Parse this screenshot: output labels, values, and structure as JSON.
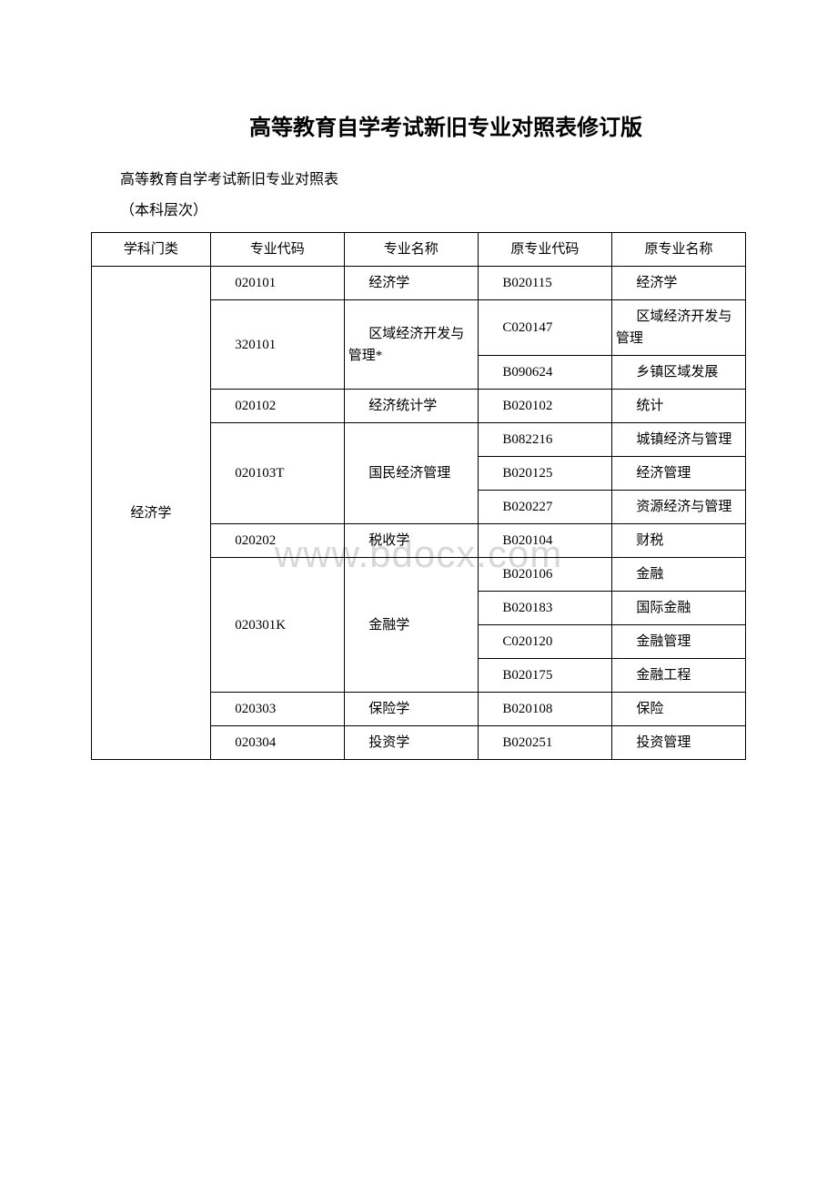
{
  "title": "高等教育自学考试新旧专业对照表修订版",
  "subtitle": "高等教育自学考试新旧专业对照表",
  "level": "（本科层次）",
  "watermark": "www.bdocx.com",
  "headers": {
    "col1": "学科门类",
    "col2": "专业代码",
    "col3": "专业名称",
    "col4": "原专业代码",
    "col5": "原专业名称"
  },
  "category": "经济学",
  "rows": [
    {
      "code": "020101",
      "name": "经济学",
      "old_code": "B020115",
      "old_name": "经济学"
    },
    {
      "code": "320101",
      "name": "区域经济开发与管理*",
      "old_code": "C020147",
      "old_name": "区域经济开发与管理",
      "code_rowspan": 2,
      "name_rowspan": 2
    },
    {
      "old_code": "B090624",
      "old_name": "乡镇区域发展"
    },
    {
      "code": "020102",
      "name": "经济统计学",
      "old_code": "B020102",
      "old_name": "统计"
    },
    {
      "code": "020103T",
      "name": "国民经济管理",
      "old_code": "B082216",
      "old_name": "城镇经济与管理",
      "code_rowspan": 3,
      "name_rowspan": 3
    },
    {
      "old_code": "B020125",
      "old_name": "经济管理"
    },
    {
      "old_code": "B020227",
      "old_name": "资源经济与管理"
    },
    {
      "code": "020202",
      "name": "税收学",
      "old_code": "B020104",
      "old_name": "财税"
    },
    {
      "code": "020301K",
      "name": "金融学",
      "old_code": "B020106",
      "old_name": "金融",
      "code_rowspan": 4,
      "name_rowspan": 4
    },
    {
      "old_code": "B020183",
      "old_name": "国际金融"
    },
    {
      "old_code": "C020120",
      "old_name": "金融管理"
    },
    {
      "old_code": "B020175",
      "old_name": "金融工程"
    },
    {
      "code": "020303",
      "name": "保险学",
      "old_code": "B020108",
      "old_name": "保险"
    },
    {
      "code": "020304",
      "name": "投资学",
      "old_code": "B020251",
      "old_name": "投资管理"
    }
  ]
}
